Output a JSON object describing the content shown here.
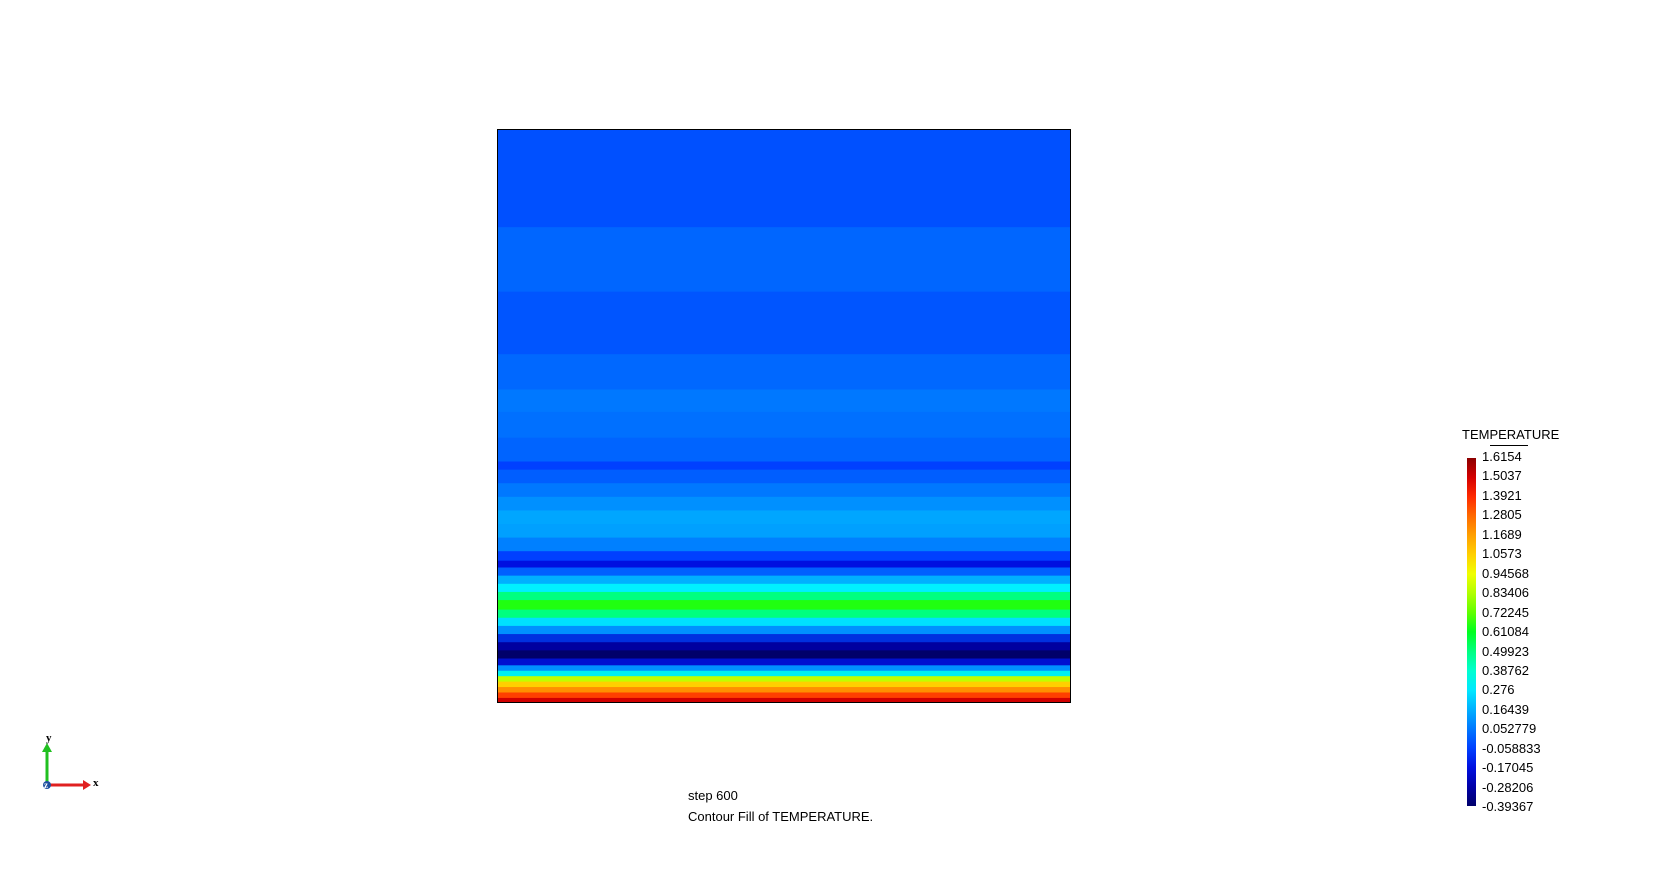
{
  "viewer": {
    "step_text": "step 600",
    "contour_text": "Contour Fill of TEMPERATURE."
  },
  "legend": {
    "title": "TEMPERATURE",
    "labels": [
      "1.6154",
      "1.5037",
      "1.3921",
      "1.2805",
      "1.1689",
      "1.0573",
      "0.94568",
      "0.83406",
      "0.72245",
      "0.61084",
      "0.49923",
      "0.38762",
      "0.276",
      "0.16439",
      "0.052779",
      "-0.058833",
      "-0.17045",
      "-0.28206",
      "-0.39367"
    ],
    "colors_top_to_bottom": [
      "#8b0000",
      "#d40000",
      "#ff2a00",
      "#ff6a00",
      "#ffa000",
      "#ffd000",
      "#f0ff00",
      "#b0ff00",
      "#60ff00",
      "#00ff20",
      "#00ff80",
      "#00ffd0",
      "#00e8ff",
      "#00b0ff",
      "#0078ff",
      "#0040ff",
      "#0010e0",
      "#0000a8",
      "#00006a"
    ]
  },
  "chart_data": {
    "type": "heatmap",
    "title": "Contour Fill of TEMPERATURE.",
    "subtitle": "step 600",
    "xlabel": "x",
    "ylabel": "y",
    "value_range": [
      -0.39367,
      1.6154
    ],
    "bands_top_to_bottom": [
      {
        "frac": 0.143,
        "color": "#0050ff"
      },
      {
        "frac": 0.095,
        "color": "#0066ff"
      },
      {
        "frac": 0.092,
        "color": "#0055ff"
      },
      {
        "frac": 0.052,
        "color": "#0068ff"
      },
      {
        "frac": 0.033,
        "color": "#0078ff"
      },
      {
        "frac": 0.038,
        "color": "#0070ff"
      },
      {
        "frac": 0.035,
        "color": "#0064ff"
      },
      {
        "frac": 0.012,
        "color": "#0040ff"
      },
      {
        "frac": 0.02,
        "color": "#005eff"
      },
      {
        "frac": 0.02,
        "color": "#0078ff"
      },
      {
        "frac": 0.02,
        "color": "#0090ff"
      },
      {
        "frac": 0.02,
        "color": "#00a6ff"
      },
      {
        "frac": 0.02,
        "color": "#00a0ff"
      },
      {
        "frac": 0.02,
        "color": "#0080ff"
      },
      {
        "frac": 0.014,
        "color": "#0040ff"
      },
      {
        "frac": 0.01,
        "color": "#0010e0"
      },
      {
        "frac": 0.012,
        "color": "#0060ff"
      },
      {
        "frac": 0.012,
        "color": "#00b0ff"
      },
      {
        "frac": 0.012,
        "color": "#00f0ff"
      },
      {
        "frac": 0.012,
        "color": "#00ff80"
      },
      {
        "frac": 0.014,
        "color": "#20ff10"
      },
      {
        "frac": 0.012,
        "color": "#00ff80"
      },
      {
        "frac": 0.012,
        "color": "#00e0ff"
      },
      {
        "frac": 0.012,
        "color": "#0090ff"
      },
      {
        "frac": 0.012,
        "color": "#0030e0"
      },
      {
        "frac": 0.012,
        "color": "#0000a0"
      },
      {
        "frac": 0.012,
        "color": "#00006a"
      },
      {
        "frac": 0.01,
        "color": "#0010d0"
      },
      {
        "frac": 0.008,
        "color": "#0090ff"
      },
      {
        "frac": 0.008,
        "color": "#00f0f0"
      },
      {
        "frac": 0.008,
        "color": "#c0ff00"
      },
      {
        "frac": 0.008,
        "color": "#ffd000"
      },
      {
        "frac": 0.008,
        "color": "#ff9000"
      },
      {
        "frac": 0.008,
        "color": "#ff4000"
      },
      {
        "frac": 0.006,
        "color": "#d00000"
      }
    ]
  },
  "axes": {
    "x_label": "x",
    "y_label": "y",
    "z_label": "z",
    "x_color": "#e02020",
    "y_color": "#20c020",
    "z_color": "#2050a0"
  }
}
